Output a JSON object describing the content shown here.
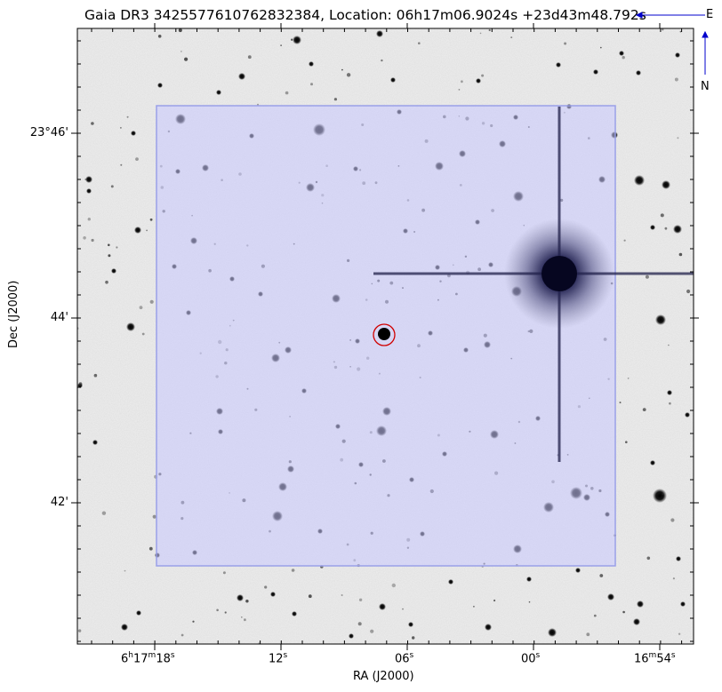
{
  "figure": {
    "title": "Gaia DR3 3425577610762832384, Location: 06h17m06.9024s +23d43m48.792s",
    "x_axis_label": "RA (J2000)",
    "y_axis_label": "Dec (J2000)",
    "x_ticks": [
      {
        "h": "6",
        "m": "17",
        "s": "18",
        "label_parts": [
          "6",
          "h",
          "17",
          "m",
          "18",
          "s"
        ]
      },
      {
        "label_parts": [
          "12",
          "s"
        ]
      },
      {
        "label_parts": [
          "06",
          "s"
        ]
      },
      {
        "label_parts": [
          "00",
          "s"
        ]
      },
      {
        "label_parts": [
          "16",
          "m",
          "54",
          "s"
        ]
      }
    ],
    "y_ticks": [
      "23°46'",
      "44'",
      "42'"
    ],
    "compass": {
      "east": "E",
      "north": "N"
    },
    "colors": {
      "footprint_fill": "#c8c8ff",
      "footprint_edge": "#9aa0e8",
      "target_marker": "#d00000",
      "compass": "#0000cc"
    }
  }
}
